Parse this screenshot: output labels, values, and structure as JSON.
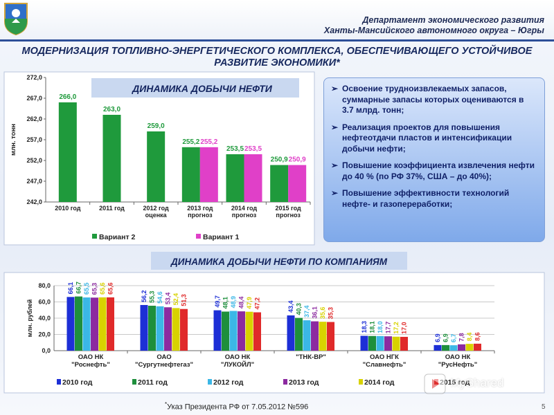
{
  "header": {
    "dept_line1": "Департамент экономического развития",
    "dept_line2": "Ханты-Мансийского автономного округа – Югры"
  },
  "slide_title": "МОДЕРНИЗАЦИЯ ТОПЛИВНО-ЭНЕРГЕТИЧЕСКОГО КОМПЛЕКСА, ОБЕСПЕЧИВАЮЩЕГО УСТОЙЧИВОЕ РАЗВИТИЕ ЭКОНОМИКИ*",
  "info_box": {
    "bullet_mark": "➢",
    "bullets": [
      "Освоение трудноизвлекаемых запасов, суммарные запасы которых оцениваются в 3.7 млрд. тонн;",
      "Реализация проектов для повышения нефтеотдачи пластов и интенсификации добычи нефти;",
      "Повышение коэффициента извлечения нефти до 40 % (по РФ 37%, США – до 40%);",
      "Повышение эффективности технологий нефте- и газопереработки;"
    ]
  },
  "footnote": {
    "mark": "*",
    "text": "Указ Президента РФ от 7.05.2012 №596"
  },
  "page_number": "5",
  "watermark": {
    "text": "MyShared",
    "icon": "play-logo-icon"
  },
  "chart_data": [
    {
      "type": "bar",
      "title": "ДИНАМИКА ДОБЫЧИ НЕФТИ",
      "ylabel": "млн. тонн",
      "ylim": [
        242,
        272
      ],
      "yticks": [
        "242,0",
        "247,0",
        "252,0",
        "257,0",
        "262,0",
        "267,0",
        "272,0"
      ],
      "categories": [
        "2010 год",
        "2011 год",
        "2012 год\nоценка",
        "2013 год\nпрогноз",
        "2014 год\nпрогноз",
        "2015 год\nпрогноз"
      ],
      "grid": false,
      "legend_position": "bottom",
      "series": [
        {
          "name": "Вариант 2",
          "color": "#1f9a3c",
          "values": [
            266.0,
            263.0,
            259.0,
            255.2,
            253.5,
            250.9
          ],
          "labels": [
            "266,0",
            "263,0",
            "259,0",
            "255,2",
            "253,5",
            "250,9"
          ]
        },
        {
          "name": "Вариант 1",
          "color": "#e040c8",
          "values": [
            null,
            null,
            null,
            255.2,
            253.5,
            250.9
          ],
          "labels": [
            "",
            "",
            "",
            "255,2",
            "253,5",
            "250,9"
          ]
        }
      ]
    },
    {
      "type": "bar",
      "title": "ДИНАМИКА ДОБЫЧИ НЕФТИ ПО КОМПАНИЯМ",
      "ylabel": "млн. рублей",
      "ylim": [
        0,
        80
      ],
      "yticks": [
        "0,0",
        "20,0",
        "40,0",
        "60,0",
        "80,0"
      ],
      "categories": [
        "ОАО НК\n\"Роснефть\"",
        "ОАО\n\"Сургутнефтегаз\"",
        "ОАО НК\n\"ЛУКОЙЛ\"",
        "\"ТНК-ВР\"",
        "ОАО НГК\n\"Славнефть\"",
        "ОАО НК\n\"РусНефть\""
      ],
      "grid": true,
      "legend_position": "bottom",
      "series": [
        {
          "name": "2010 год",
          "color": "#1d2fd6",
          "values": [
            66.1,
            56.2,
            49.7,
            43.4,
            18.3,
            6.9
          ],
          "labels": [
            "66,1",
            "56,2",
            "49,7",
            "43,4",
            "18,3",
            "6,9"
          ]
        },
        {
          "name": "2011 год",
          "color": "#1e8f3c",
          "values": [
            66.7,
            55.3,
            48.1,
            40.3,
            18.1,
            6.9
          ],
          "labels": [
            "66,7",
            "55,3",
            "48,1",
            "40,3",
            "18,1",
            "6,9"
          ]
        },
        {
          "name": "2012 год",
          "color": "#3bb7e6",
          "values": [
            65.5,
            54.6,
            48.9,
            37.4,
            18.0,
            6.7
          ],
          "labels": [
            "65,5",
            "54,6",
            "48,9",
            "37,4",
            "18,0",
            "6,7"
          ]
        },
        {
          "name": "2013 год",
          "color": "#8c2aa0",
          "values": [
            65.3,
            53.4,
            48.4,
            36.1,
            17.7,
            7.8
          ],
          "labels": [
            "65,3",
            "53,4",
            "48,4",
            "36,1",
            "17,7",
            "7,8"
          ]
        },
        {
          "name": "2014 год",
          "color": "#d8d200",
          "values": [
            65.6,
            52.4,
            47.9,
            35.6,
            17.2,
            8.4
          ],
          "labels": [
            "65,6",
            "52,4",
            "47,9",
            "35,6",
            "17,2",
            "8,4"
          ]
        },
        {
          "name": "2015 год",
          "color": "#e02a2a",
          "values": [
            65.6,
            51.3,
            47.2,
            35.3,
            17.0,
            8.6
          ],
          "labels": [
            "65,6",
            "51,3",
            "47,2",
            "35,3",
            "17,0",
            "8,6"
          ]
        }
      ]
    }
  ]
}
